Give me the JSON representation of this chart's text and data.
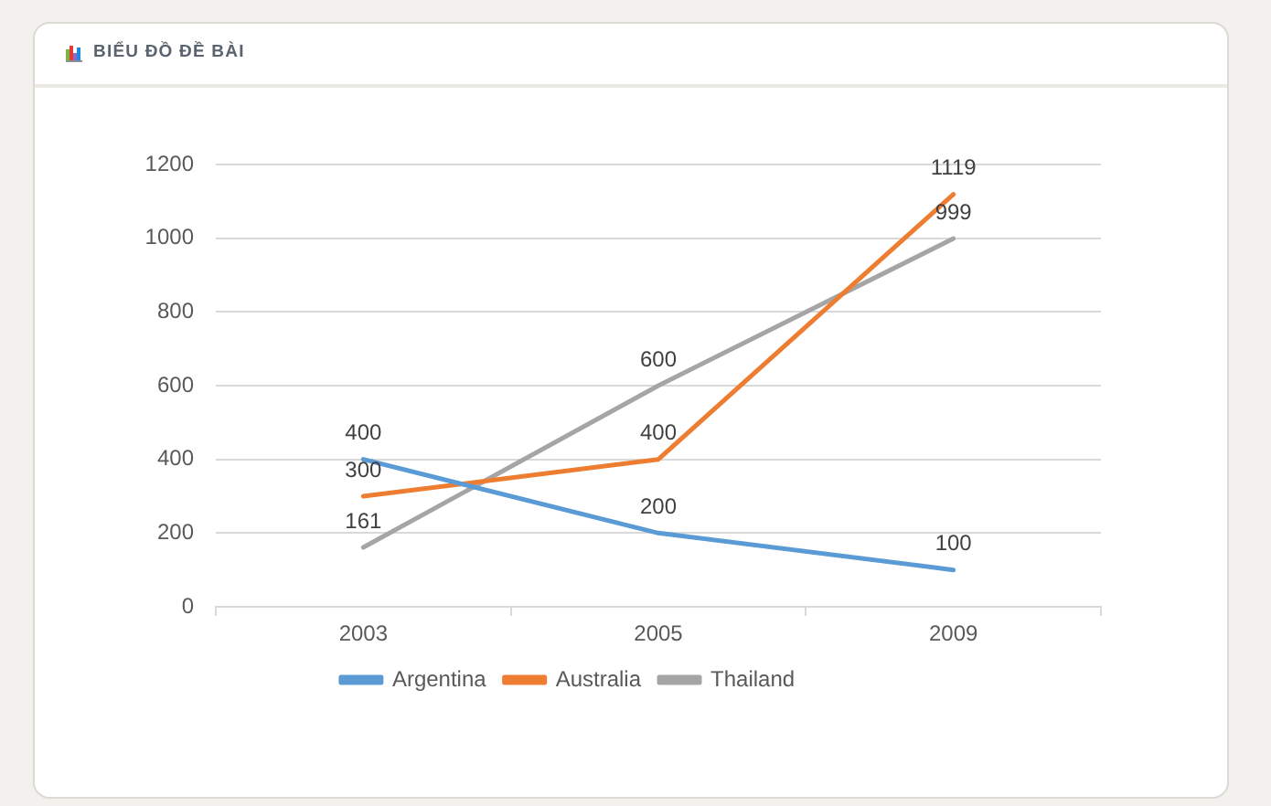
{
  "chart_data": {
    "type": "line",
    "title": "BIỂU ĐỒ ĐỀ BÀI",
    "categories": [
      "2003",
      "2005",
      "2009"
    ],
    "series": [
      {
        "name": "Argentina",
        "color": "#5b9bd5",
        "values": [
          400,
          200,
          100
        ]
      },
      {
        "name": "Australia",
        "color": "#ed7d31",
        "values": [
          300,
          400,
          1119
        ]
      },
      {
        "name": "Thailand",
        "color": "#a5a5a5",
        "values": [
          161,
          600,
          999
        ]
      }
    ],
    "ylim": [
      0,
      1200
    ],
    "yticks": [
      0,
      200,
      400,
      600,
      800,
      1000,
      1200
    ],
    "grid": "y",
    "legend": "bottom",
    "data_labels": true,
    "marker": "none",
    "line_style": "solid"
  }
}
